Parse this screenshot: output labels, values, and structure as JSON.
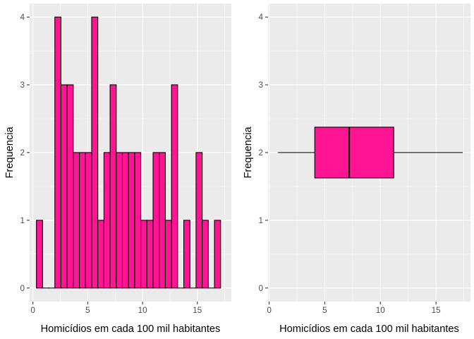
{
  "chart_data": [
    {
      "type": "bar",
      "subtype": "histogram",
      "xlabel": "Homicídios em cada 100 mil habitantes",
      "ylabel": "Frequencia",
      "xlim": [
        -0.3,
        18.1
      ],
      "ylim": [
        -0.2,
        4.2
      ],
      "xticks": [
        0,
        5,
        10,
        15
      ],
      "yticks": [
        0,
        1,
        2,
        3,
        4
      ],
      "grid": true,
      "bins": [
        {
          "x0": 0.32,
          "x1": 0.88,
          "count": 1
        },
        {
          "x0": 0.88,
          "x1": 1.44,
          "count": 0
        },
        {
          "x0": 1.44,
          "x1": 2.0,
          "count": 0
        },
        {
          "x0": 2.0,
          "x1": 2.56,
          "count": 4
        },
        {
          "x0": 2.56,
          "x1": 3.12,
          "count": 3
        },
        {
          "x0": 3.12,
          "x1": 3.68,
          "count": 3
        },
        {
          "x0": 3.68,
          "x1": 4.24,
          "count": 2
        },
        {
          "x0": 4.24,
          "x1": 4.8,
          "count": 2
        },
        {
          "x0": 4.8,
          "x1": 5.36,
          "count": 2
        },
        {
          "x0": 5.36,
          "x1": 5.92,
          "count": 4
        },
        {
          "x0": 5.92,
          "x1": 6.48,
          "count": 1
        },
        {
          "x0": 6.48,
          "x1": 7.04,
          "count": 2
        },
        {
          "x0": 7.04,
          "x1": 7.6,
          "count": 3
        },
        {
          "x0": 7.6,
          "x1": 8.16,
          "count": 2
        },
        {
          "x0": 8.16,
          "x1": 8.72,
          "count": 2
        },
        {
          "x0": 8.72,
          "x1": 9.28,
          "count": 2
        },
        {
          "x0": 9.28,
          "x1": 9.84,
          "count": 2
        },
        {
          "x0": 9.84,
          "x1": 10.4,
          "count": 1
        },
        {
          "x0": 10.4,
          "x1": 10.96,
          "count": 1
        },
        {
          "x0": 10.96,
          "x1": 11.52,
          "count": 2
        },
        {
          "x0": 11.52,
          "x1": 12.08,
          "count": 2
        },
        {
          "x0": 12.08,
          "x1": 12.64,
          "count": 1
        },
        {
          "x0": 12.64,
          "x1": 13.2,
          "count": 3
        },
        {
          "x0": 13.2,
          "x1": 13.76,
          "count": 0
        },
        {
          "x0": 13.76,
          "x1": 14.32,
          "count": 1
        },
        {
          "x0": 14.32,
          "x1": 14.88,
          "count": 0
        },
        {
          "x0": 14.88,
          "x1": 15.44,
          "count": 2
        },
        {
          "x0": 15.44,
          "x1": 16.0,
          "count": 1
        },
        {
          "x0": 16.0,
          "x1": 16.56,
          "count": 0
        },
        {
          "x0": 16.56,
          "x1": 17.12,
          "count": 1
        }
      ],
      "fill_color": "#ff1493",
      "outline_color": "#000000"
    },
    {
      "type": "box",
      "xlabel": "Homicídios em cada 100 mil habitantes",
      "ylabel": "Frequencia",
      "xlim": [
        -0.1,
        18.1
      ],
      "ylim": [
        -0.2,
        4.2
      ],
      "xticks": [
        0,
        5,
        10,
        15
      ],
      "yticks": [
        0,
        1,
        2,
        3,
        4
      ],
      "grid": true,
      "box": {
        "y": 2,
        "min": 0.8,
        "q1": 4.1,
        "median": 7.2,
        "q3": 11.2,
        "max": 17.4,
        "half_height": 0.375
      },
      "fill_color": "#ff1493",
      "outline_color": "#000000"
    }
  ]
}
